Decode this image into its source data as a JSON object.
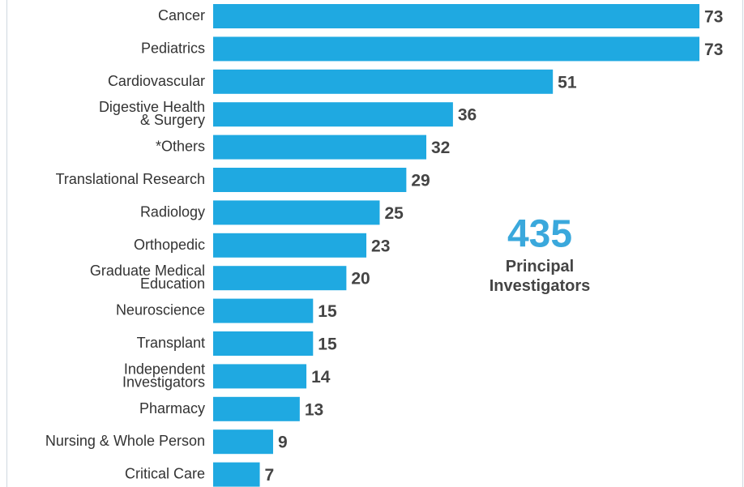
{
  "chart_data": {
    "type": "bar",
    "orientation": "horizontal",
    "categories": [
      "Cancer",
      "Pediatrics",
      "Cardiovascular",
      "Digestive Health\n& Surgery",
      "*Others",
      "Translational Research",
      "Radiology",
      "Orthopedic",
      "Graduate Medical\nEducation",
      "Neuroscience",
      "Transplant",
      "Independent\nInvestigators",
      "Pharmacy",
      "Nursing & Whole Person",
      "Critical Care"
    ],
    "values": [
      73,
      73,
      51,
      36,
      32,
      29,
      25,
      23,
      20,
      15,
      15,
      14,
      13,
      9,
      7
    ],
    "color": "#1fa9e1",
    "annotation": {
      "number": "435",
      "text": "Principal\nInvestigators"
    }
  }
}
